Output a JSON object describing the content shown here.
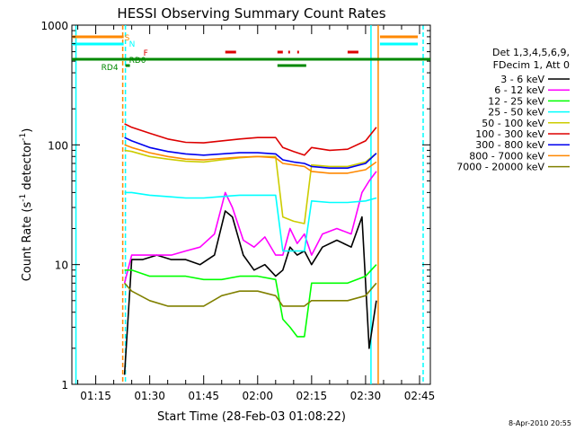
{
  "chart_data": {
    "type": "line",
    "title": "HESSI Observing Summary Count Rates",
    "xlabel": "Start Time (28-Feb-03 01:08:22)",
    "ylabel_main": "Count Rate (s",
    "ylabel_sup1": "-1",
    "ylabel_mid": " detector",
    "ylabel_sup2": "-1",
    "ylabel_end": ")",
    "y_scale": "log",
    "ylim": [
      1,
      1000
    ],
    "xlim": [
      "01:08:22",
      "02:48:00"
    ],
    "x_ticks": [
      "01:15",
      "01:30",
      "01:45",
      "02:00",
      "02:15",
      "02:30",
      "02:45"
    ],
    "y_ticks": [
      "1",
      "10",
      "100",
      "1000"
    ],
    "legend": {
      "placement": "right",
      "header_line1": "Det 1,3,4,5,6,9,",
      "header_line2": "FDecim 1, Att 0"
    },
    "series": [
      {
        "name": "3 - 6 keV",
        "color": "#000000",
        "times": [
          "01:23",
          "01:25",
          "01:28",
          "01:32",
          "01:36",
          "01:40",
          "01:44",
          "01:48",
          "01:51",
          "01:53",
          "01:56",
          "01:59",
          "02:02",
          "02:05",
          "02:07",
          "02:09",
          "02:11",
          "02:13",
          "02:15",
          "02:18",
          "02:22",
          "02:26",
          "02:29",
          "02:31",
          "02:33"
        ],
        "values": [
          1.2,
          11,
          11,
          12,
          11,
          11,
          10,
          12,
          28,
          25,
          12,
          9,
          10,
          8,
          9,
          14,
          12,
          13,
          10,
          14,
          16,
          14,
          25,
          2,
          5
        ]
      },
      {
        "name": "6 - 12 keV",
        "color": "#ff00ff",
        "times": [
          "01:23",
          "01:25",
          "01:28",
          "01:32",
          "01:36",
          "01:40",
          "01:44",
          "01:48",
          "01:51",
          "01:53",
          "01:56",
          "01:59",
          "02:02",
          "02:05",
          "02:07",
          "02:09",
          "02:11",
          "02:13",
          "02:15",
          "02:18",
          "02:22",
          "02:26",
          "02:29",
          "02:31",
          "02:33"
        ],
        "values": [
          7,
          12,
          12,
          12,
          12,
          13,
          14,
          18,
          40,
          30,
          16,
          14,
          17,
          12,
          12,
          20,
          15,
          18,
          12,
          18,
          20,
          18,
          40,
          50,
          60
        ]
      },
      {
        "name": "12 - 25 keV",
        "color": "#00ff00",
        "times": [
          "01:23",
          "01:25",
          "01:30",
          "01:35",
          "01:40",
          "01:45",
          "01:50",
          "01:55",
          "02:00",
          "02:05",
          "02:07",
          "02:09",
          "02:11",
          "02:13",
          "02:15",
          "02:20",
          "02:25",
          "02:30",
          "02:33"
        ],
        "values": [
          9,
          9,
          8,
          8,
          8,
          7.5,
          7.5,
          8,
          8,
          7.5,
          3.5,
          3,
          2.5,
          2.5,
          7,
          7,
          7,
          8,
          10
        ]
      },
      {
        "name": "25 - 50 keV",
        "color": "#00ffff",
        "times": [
          "01:23",
          "01:25",
          "01:30",
          "01:35",
          "01:40",
          "01:45",
          "01:50",
          "01:55",
          "02:00",
          "02:05",
          "02:07",
          "02:10",
          "02:13",
          "02:15",
          "02:20",
          "02:25",
          "02:30",
          "02:33"
        ],
        "values": [
          40,
          40,
          38,
          37,
          36,
          36,
          37,
          38,
          38,
          38,
          13,
          13,
          13,
          34,
          33,
          33,
          34,
          36
        ]
      },
      {
        "name": "50 - 100 keV",
        "color": "#cccc00",
        "times": [
          "01:23",
          "01:25",
          "01:30",
          "01:35",
          "01:40",
          "01:45",
          "01:50",
          "01:55",
          "02:00",
          "02:05",
          "02:07",
          "02:10",
          "02:13",
          "02:15",
          "02:20",
          "02:25",
          "02:30",
          "02:33"
        ],
        "values": [
          90,
          88,
          80,
          76,
          73,
          72,
          75,
          78,
          80,
          80,
          25,
          23,
          22,
          68,
          66,
          66,
          72,
          85
        ]
      },
      {
        "name": "100 - 300 keV",
        "color": "#dd0000",
        "times": [
          "01:23",
          "01:25",
          "01:30",
          "01:35",
          "01:40",
          "01:45",
          "01:50",
          "01:55",
          "02:00",
          "02:05",
          "02:07",
          "02:10",
          "02:13",
          "02:15",
          "02:20",
          "02:25",
          "02:30",
          "02:33"
        ],
        "values": [
          150,
          140,
          125,
          112,
          105,
          104,
          108,
          112,
          115,
          115,
          95,
          88,
          82,
          95,
          90,
          92,
          108,
          140
        ]
      },
      {
        "name": "300 - 800 keV",
        "color": "#0000ee",
        "times": [
          "01:23",
          "01:25",
          "01:30",
          "01:35",
          "01:40",
          "01:45",
          "01:50",
          "01:55",
          "02:00",
          "02:05",
          "02:07",
          "02:10",
          "02:13",
          "02:15",
          "02:20",
          "02:25",
          "02:30",
          "02:33"
        ],
        "values": [
          115,
          108,
          95,
          88,
          84,
          82,
          84,
          86,
          86,
          84,
          75,
          72,
          70,
          66,
          64,
          64,
          70,
          85
        ]
      },
      {
        "name": "800 - 7000 keV",
        "color": "#ff8800",
        "times": [
          "01:23",
          "01:25",
          "01:30",
          "01:35",
          "01:40",
          "01:45",
          "01:50",
          "01:55",
          "02:00",
          "02:05",
          "02:07",
          "02:10",
          "02:13",
          "02:15",
          "02:20",
          "02:25",
          "02:30",
          "02:33"
        ],
        "values": [
          100,
          95,
          86,
          80,
          76,
          75,
          77,
          79,
          80,
          78,
          70,
          68,
          66,
          60,
          58,
          58,
          62,
          72
        ]
      },
      {
        "name": "7000 - 20000 keV",
        "color": "#808000",
        "times": [
          "01:23",
          "01:25",
          "01:30",
          "01:35",
          "01:40",
          "01:45",
          "01:50",
          "01:55",
          "02:00",
          "02:05",
          "02:07",
          "02:10",
          "02:13",
          "02:15",
          "02:20",
          "02:25",
          "02:30",
          "02:33"
        ],
        "values": [
          7,
          6,
          5,
          4.5,
          4.5,
          4.5,
          5.5,
          6,
          6,
          5.5,
          4.5,
          4.5,
          4.5,
          5,
          5,
          5,
          5.5,
          7
        ]
      }
    ],
    "flag_labels": [
      {
        "text": "S",
        "color": "#ff8800"
      },
      {
        "text": "N",
        "color": "#00ffff"
      },
      {
        "text": "F",
        "color": "#dd0000"
      },
      {
        "text": "RD0",
        "color": "#008800"
      },
      {
        "text": "RD4",
        "color": "#008800"
      }
    ],
    "vertical_markers": [
      {
        "time": "01:09:30",
        "color": "#00ffff",
        "style": "solid"
      },
      {
        "time": "01:22:30",
        "color": "#ff8800",
        "style": "dashed"
      },
      {
        "time": "01:23:15",
        "color": "#00ffff",
        "style": "dashed"
      },
      {
        "time": "02:31:30",
        "color": "#00ffff",
        "style": "solid"
      },
      {
        "time": "02:33:30",
        "color": "#ff8800",
        "style": "solid"
      },
      {
        "time": "02:46:00",
        "color": "#00ffff",
        "style": "dashed"
      }
    ]
  },
  "footer": {
    "timestamp": "8-Apr-2010 20:55"
  }
}
